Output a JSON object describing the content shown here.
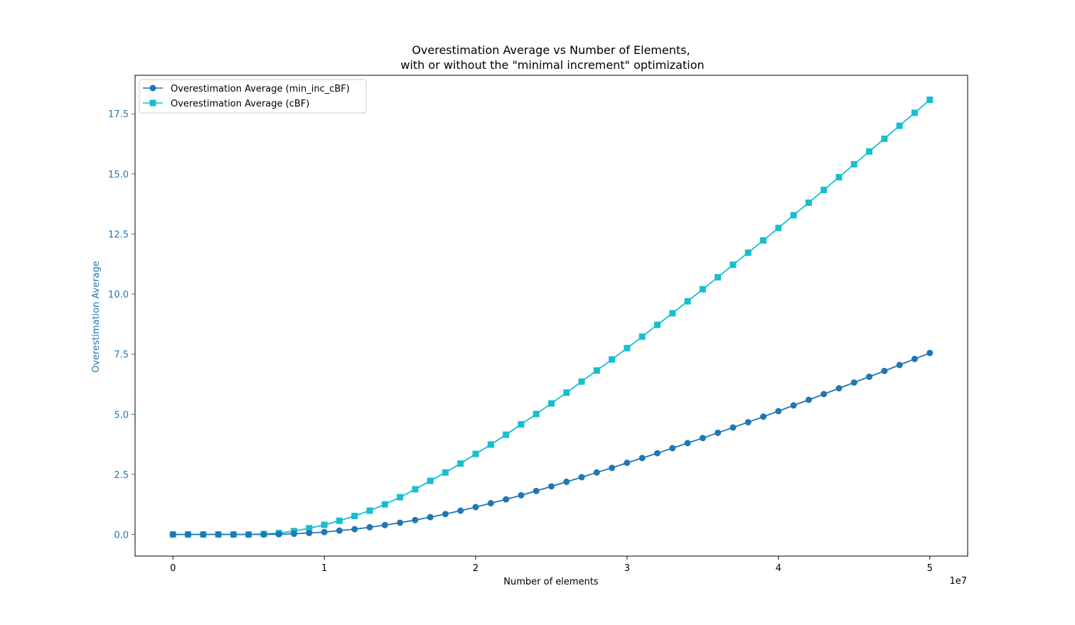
{
  "chart_data": {
    "type": "line",
    "title": "Overestimation Average vs Number of Elements,",
    "subtitle": "with or without the \"minimal increment\" optimization",
    "xlabel": "Number of elements",
    "ylabel": "Overestimation Average",
    "x_offset_label": "1e7",
    "x_multiplier": 10000000,
    "xlim": [
      -0.25,
      5.25
    ],
    "ylim": [
      -0.9,
      19.1
    ],
    "x_ticks": [
      0,
      1,
      2,
      3,
      4,
      5
    ],
    "x_tick_labels": [
      "0",
      "1",
      "2",
      "3",
      "4",
      "5"
    ],
    "y_ticks": [
      0,
      2.5,
      5,
      7.5,
      10,
      12.5,
      15,
      17.5
    ],
    "y_tick_labels": [
      "0.0",
      "2.5",
      "5.0",
      "7.5",
      "10.0",
      "12.5",
      "15.0",
      "17.5"
    ],
    "grid": false,
    "legend_position": "top-left",
    "colors": {
      "series_1": "#1f77b4",
      "series_2": "#17becf",
      "y_axis": "#1f77b4",
      "axis": "#000000"
    },
    "x": [
      0,
      0.1,
      0.2,
      0.3,
      0.4,
      0.5,
      0.6,
      0.7,
      0.8,
      0.9,
      1.0,
      1.1,
      1.2,
      1.3,
      1.4,
      1.5,
      1.6,
      1.7,
      1.8,
      1.9,
      2.0,
      2.1,
      2.2,
      2.3,
      2.4,
      2.5,
      2.6,
      2.7,
      2.8,
      2.9,
      3.0,
      3.1,
      3.2,
      3.3,
      3.4,
      3.5,
      3.6,
      3.7,
      3.8,
      3.9,
      4.0,
      4.1,
      4.2,
      4.3,
      4.4,
      4.5,
      4.6,
      4.7,
      4.8,
      4.9,
      5.0
    ],
    "series": [
      {
        "name": "Overestimation Average (min_inc_cBF)",
        "marker": "circle",
        "values": [
          0,
          0,
          0,
          0,
          0,
          0,
          0,
          0.01,
          0.03,
          0.06,
          0.1,
          0.16,
          0.22,
          0.3,
          0.39,
          0.49,
          0.6,
          0.72,
          0.85,
          0.99,
          1.14,
          1.3,
          1.46,
          1.63,
          1.81,
          2.0,
          2.19,
          2.38,
          2.58,
          2.77,
          2.98,
          3.18,
          3.38,
          3.59,
          3.8,
          4.01,
          4.23,
          4.45,
          4.67,
          4.9,
          5.13,
          5.37,
          5.6,
          5.84,
          6.08,
          6.32,
          6.56,
          6.8,
          7.05,
          7.3,
          7.55
        ]
      },
      {
        "name": "Overestimation Average (cBF)",
        "marker": "square",
        "values": [
          0,
          0,
          0,
          0,
          0,
          0,
          0.02,
          0.06,
          0.14,
          0.26,
          0.4,
          0.57,
          0.77,
          0.99,
          1.25,
          1.55,
          1.88,
          2.23,
          2.58,
          2.95,
          3.35,
          3.74,
          4.15,
          4.58,
          5.01,
          5.45,
          5.9,
          6.36,
          6.82,
          7.28,
          7.75,
          8.23,
          8.72,
          9.2,
          9.7,
          10.2,
          10.7,
          11.22,
          11.72,
          12.23,
          12.75,
          13.28,
          13.8,
          14.33,
          14.86,
          15.4,
          15.93,
          16.46,
          17.0,
          17.54,
          18.08
        ]
      }
    ]
  }
}
